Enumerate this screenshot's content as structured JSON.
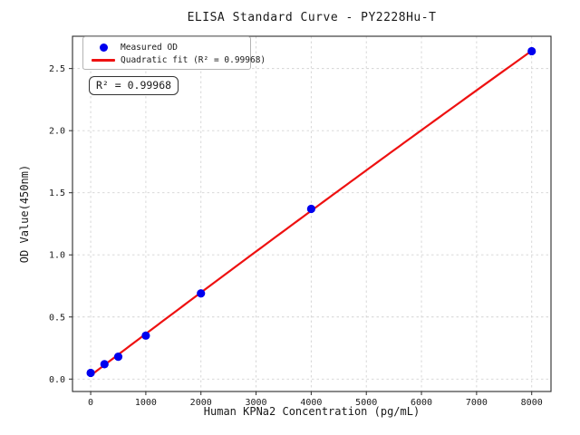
{
  "chart_data": {
    "type": "scatter",
    "title": "ELISA Standard Curve - PY2228Hu-T",
    "xlabel": "Human KPNa2 Concentration (pg/mL)",
    "ylabel": "OD Value(450nm)",
    "categories_note": "x = concentration pg/mL, y = OD 450nm",
    "x": [
      0,
      250,
      500,
      1000,
      2000,
      4000,
      8000
    ],
    "y": [
      0.05,
      0.12,
      0.18,
      0.35,
      0.69,
      1.37,
      2.64
    ],
    "series": [
      {
        "name": "Measured OD",
        "type": "scatter",
        "color": "#0000ee"
      },
      {
        "name": "Quadratic fit (R² = 0.99968)",
        "type": "line",
        "fit": "quadratic",
        "color": "#ee1111"
      }
    ],
    "xticks": [
      0,
      1000,
      2000,
      3000,
      4000,
      5000,
      6000,
      7000,
      8000
    ],
    "yticks": [
      0.0,
      0.5,
      1.0,
      1.5,
      2.0,
      2.5
    ],
    "xlim": [
      -330,
      8350
    ],
    "ylim": [
      -0.1,
      2.76
    ],
    "grid": true,
    "legend_position": "upper left",
    "annotation": "R² = 0.99968",
    "r_squared": "0.99968",
    "colors": {
      "marker": "#0000ee",
      "fit_line": "#ee1111",
      "grid": "#d4d4d4",
      "spine": "#2b2b2b",
      "tick_label": "#1a1a1a",
      "background": "#ffffff"
    }
  }
}
